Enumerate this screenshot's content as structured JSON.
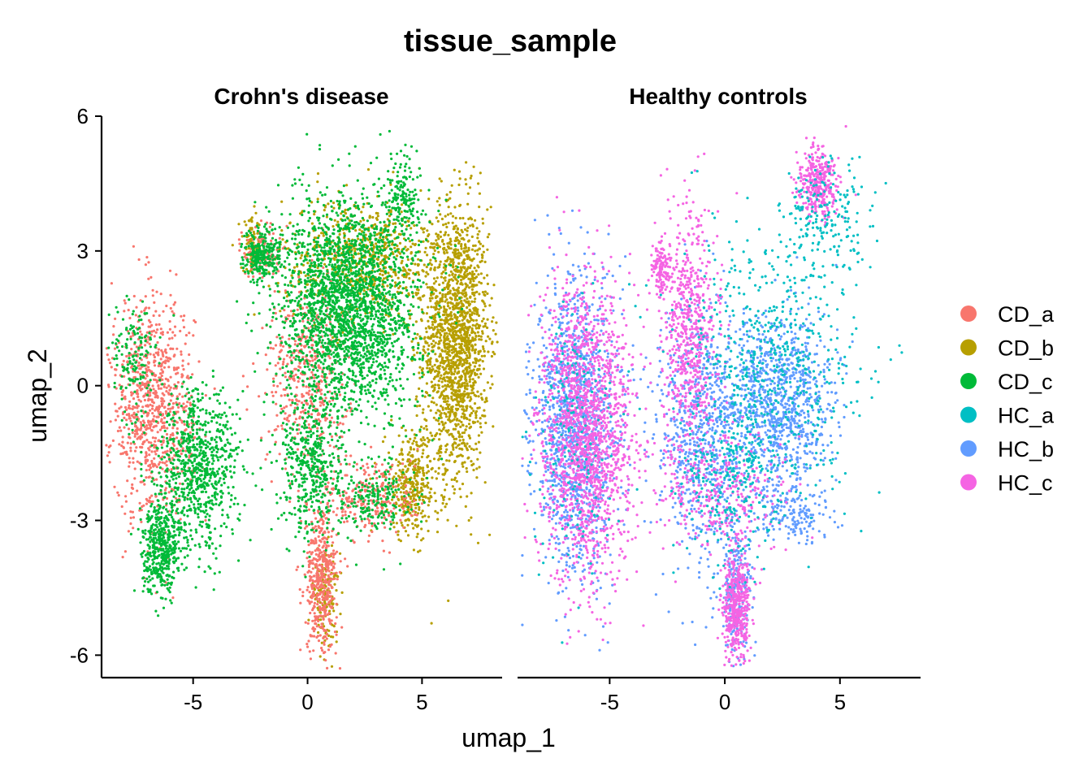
{
  "chart_data": {
    "type": "scatter",
    "title": "tissue_sample",
    "xlabel": "umap_1",
    "ylabel": "umap_2",
    "xlim": [
      -9,
      8.5
    ],
    "ylim": [
      -6.5,
      6
    ],
    "x_ticks": [
      -5,
      0,
      5
    ],
    "y_ticks": [
      -6,
      -3,
      0,
      3,
      6
    ],
    "x_tick_labels": [
      "-5",
      "0",
      "5"
    ],
    "y_tick_labels": [
      "-6",
      "-3",
      "0",
      "3",
      "6"
    ],
    "grid": false,
    "legend_position": "right",
    "facets": [
      {
        "label": "Crohn's disease",
        "series": [
          "CD_a",
          "CD_b",
          "CD_c"
        ],
        "clusters": [
          {
            "series": "CD_b",
            "x": 6.5,
            "y": 1.0,
            "sx": 0.7,
            "sy": 1.5,
            "n": 1700
          },
          {
            "series": "CD_b",
            "x": 2.5,
            "y": 2.8,
            "sx": 1.8,
            "sy": 0.7,
            "n": 700
          },
          {
            "series": "CD_b",
            "x": 4.6,
            "y": -2.2,
            "sx": 0.6,
            "sy": 0.6,
            "n": 350
          },
          {
            "series": "CD_b",
            "x": 0.8,
            "y": -4.7,
            "sx": 0.3,
            "sy": 0.5,
            "n": 150
          },
          {
            "series": "CD_b",
            "x": -2.4,
            "y": 3.1,
            "sx": 0.2,
            "sy": 0.3,
            "n": 90
          },
          {
            "series": "CD_a",
            "x": -6.8,
            "y": -0.5,
            "sx": 0.9,
            "sy": 1.2,
            "n": 900
          },
          {
            "series": "CD_a",
            "x": 0.6,
            "y": -4.3,
            "sx": 0.35,
            "sy": 0.8,
            "n": 450
          },
          {
            "series": "CD_a",
            "x": 0.0,
            "y": 0.2,
            "sx": 0.9,
            "sy": 1.0,
            "n": 450
          },
          {
            "series": "CD_a",
            "x": 2.8,
            "y": -2.5,
            "sx": 1.0,
            "sy": 0.5,
            "n": 250
          },
          {
            "series": "CD_a",
            "x": -2.0,
            "y": 3.0,
            "sx": 0.4,
            "sy": 0.3,
            "n": 120
          },
          {
            "series": "CD_c",
            "x": 1.8,
            "y": 1.8,
            "sx": 1.5,
            "sy": 1.2,
            "n": 2400
          },
          {
            "series": "CD_c",
            "x": -4.8,
            "y": -1.9,
            "sx": 0.9,
            "sy": 0.9,
            "n": 800
          },
          {
            "series": "CD_c",
            "x": -6.4,
            "y": -3.6,
            "sx": 0.4,
            "sy": 0.5,
            "n": 450
          },
          {
            "series": "CD_c",
            "x": -2.0,
            "y": 2.9,
            "sx": 0.4,
            "sy": 0.3,
            "n": 250
          },
          {
            "series": "CD_c",
            "x": -7.6,
            "y": 0.6,
            "sx": 0.5,
            "sy": 0.6,
            "n": 150
          },
          {
            "series": "CD_c",
            "x": 0.2,
            "y": -1.8,
            "sx": 0.7,
            "sy": 0.8,
            "n": 450
          },
          {
            "series": "CD_c",
            "x": 4.2,
            "y": 4.2,
            "sx": 0.4,
            "sy": 0.5,
            "n": 150
          },
          {
            "series": "CD_c",
            "x": 3.0,
            "y": -2.5,
            "sx": 0.8,
            "sy": 0.4,
            "n": 200
          }
        ]
      },
      {
        "label": "Healthy controls",
        "series": [
          "HC_a",
          "HC_b",
          "HC_c"
        ],
        "clusters": [
          {
            "series": "HC_b",
            "x": -6.5,
            "y": -0.9,
            "sx": 0.9,
            "sy": 1.6,
            "n": 1300
          },
          {
            "series": "HC_b",
            "x": 2.3,
            "y": -0.4,
            "sx": 1.2,
            "sy": 1.0,
            "n": 1000
          },
          {
            "series": "HC_b",
            "x": -1.0,
            "y": -1.2,
            "sx": 1.0,
            "sy": 1.5,
            "n": 700
          },
          {
            "series": "HC_b",
            "x": 0.5,
            "y": -4.5,
            "sx": 0.35,
            "sy": 0.8,
            "n": 250
          },
          {
            "series": "HC_b",
            "x": 3.0,
            "y": -2.9,
            "sx": 0.8,
            "sy": 0.3,
            "n": 150
          },
          {
            "series": "HC_c",
            "x": -6.0,
            "y": -1.0,
            "sx": 1.0,
            "sy": 1.6,
            "n": 1700
          },
          {
            "series": "HC_c",
            "x": -1.5,
            "y": 1.2,
            "sx": 0.6,
            "sy": 1.3,
            "n": 650
          },
          {
            "series": "HC_c",
            "x": 0.5,
            "y": -4.9,
            "sx": 0.3,
            "sy": 0.6,
            "n": 450
          },
          {
            "series": "HC_c",
            "x": 4.0,
            "y": 4.5,
            "sx": 0.4,
            "sy": 0.4,
            "n": 350
          },
          {
            "series": "HC_c",
            "x": -2.8,
            "y": 2.6,
            "sx": 0.2,
            "sy": 0.3,
            "n": 120
          },
          {
            "series": "HC_c",
            "x": -0.3,
            "y": -2.3,
            "sx": 1.5,
            "sy": 0.7,
            "n": 350
          },
          {
            "series": "HC_a",
            "x": 2.0,
            "y": 0.5,
            "sx": 2.0,
            "sy": 1.6,
            "n": 600
          },
          {
            "series": "HC_a",
            "x": 4.5,
            "y": 3.7,
            "sx": 0.9,
            "sy": 0.7,
            "n": 180
          },
          {
            "series": "HC_a",
            "x": -6.6,
            "y": -1.5,
            "sx": 0.9,
            "sy": 1.5,
            "n": 150
          },
          {
            "series": "HC_a",
            "x": 0.3,
            "y": -2.0,
            "sx": 1.0,
            "sy": 1.0,
            "n": 250
          }
        ]
      }
    ],
    "colors": {
      "CD_a": "#F8766D",
      "CD_b": "#B79F00",
      "CD_c": "#00BA38",
      "HC_a": "#00BFC4",
      "HC_b": "#619CFF",
      "HC_c": "#F564E3"
    },
    "legend": [
      "CD_a",
      "CD_b",
      "CD_c",
      "HC_a",
      "HC_b",
      "HC_c"
    ]
  }
}
